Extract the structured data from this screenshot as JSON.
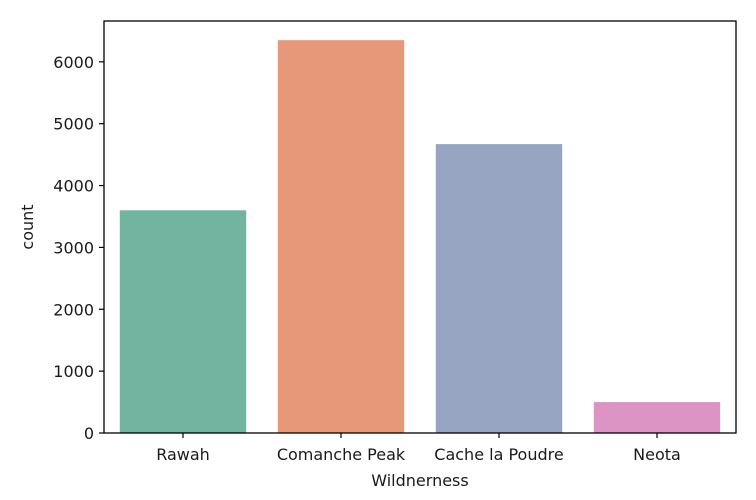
{
  "chart_data": {
    "type": "bar",
    "title": "",
    "xlabel": "Wildnerness",
    "ylabel": "count",
    "categories": [
      "Rawah",
      "Comanche Peak",
      "Cache la Poudre",
      "Neota"
    ],
    "values": [
      3600,
      6350,
      4670,
      500
    ],
    "colors": [
      "#73b4a0",
      "#e69878",
      "#97a5c3",
      "#db94c3"
    ],
    "ylim": [
      0,
      6660
    ],
    "yticks": [
      0,
      1000,
      2000,
      3000,
      4000,
      5000,
      6000
    ],
    "grid": false,
    "legend": "none"
  }
}
